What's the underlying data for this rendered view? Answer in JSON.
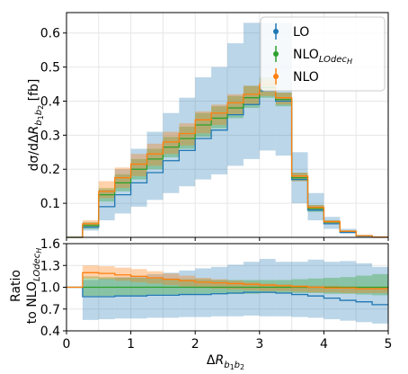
{
  "chart_data": [
    {
      "type": "histogram",
      "panel": "main",
      "ylabel": "dσ/dΔR_{b₁b₂}   [fb]",
      "xlim": [
        0,
        5
      ],
      "ylim": [
        0,
        0.66
      ],
      "yticks": [
        "0.1",
        "0.2",
        "0.3",
        "0.4",
        "0.5",
        "0.6"
      ],
      "grid": true,
      "legend_position": "top-right",
      "bin_edges": [
        0.0,
        0.25,
        0.5,
        0.75,
        1.0,
        1.25,
        1.5,
        1.75,
        2.0,
        2.25,
        2.5,
        2.75,
        3.0,
        3.25,
        3.5,
        3.75,
        4.0,
        4.25,
        4.5,
        4.75,
        5.0
      ],
      "series": [
        {
          "name": "LO",
          "color": "#1f77b4",
          "values": [
            0.0,
            0.03,
            0.09,
            0.125,
            0.16,
            0.19,
            0.225,
            0.255,
            0.29,
            0.315,
            0.36,
            0.39,
            0.43,
            0.4,
            0.17,
            0.08,
            0.04,
            0.015,
            0.004,
            0.001
          ],
          "band_low": [
            0.0,
            0.02,
            0.05,
            0.07,
            0.09,
            0.11,
            0.13,
            0.15,
            0.17,
            0.185,
            0.21,
            0.23,
            0.255,
            0.24,
            0.1,
            0.05,
            0.025,
            0.01,
            0.002,
            0.0005
          ],
          "band_high": [
            0.0,
            0.04,
            0.14,
            0.2,
            0.26,
            0.31,
            0.365,
            0.41,
            0.47,
            0.5,
            0.57,
            0.63,
            0.63,
            0.63,
            0.25,
            0.13,
            0.06,
            0.025,
            0.007,
            0.002
          ]
        },
        {
          "name": "NLO_{LOdecH}",
          "color": "#2ca02c",
          "values": [
            0.0,
            0.035,
            0.125,
            0.16,
            0.2,
            0.23,
            0.265,
            0.29,
            0.33,
            0.35,
            0.38,
            0.41,
            0.44,
            0.405,
            0.175,
            0.085,
            0.045,
            0.018,
            0.005,
            0.001
          ],
          "band_low": [
            0.0,
            0.025,
            0.105,
            0.135,
            0.17,
            0.2,
            0.235,
            0.26,
            0.295,
            0.32,
            0.35,
            0.38,
            0.41,
            0.385,
            0.165,
            0.075,
            0.04,
            0.015,
            0.004,
            0.001
          ],
          "band_high": [
            0.0,
            0.045,
            0.145,
            0.185,
            0.23,
            0.26,
            0.295,
            0.325,
            0.365,
            0.385,
            0.415,
            0.445,
            0.47,
            0.425,
            0.19,
            0.095,
            0.05,
            0.02,
            0.006,
            0.0015
          ]
        },
        {
          "name": "NLO",
          "color": "#ff7f0e",
          "values": [
            0.0,
            0.04,
            0.135,
            0.175,
            0.215,
            0.245,
            0.28,
            0.305,
            0.345,
            0.365,
            0.395,
            0.42,
            0.45,
            0.41,
            0.18,
            0.088,
            0.046,
            0.018,
            0.005,
            0.001
          ],
          "band_low": [
            0.0,
            0.03,
            0.115,
            0.145,
            0.18,
            0.21,
            0.245,
            0.27,
            0.305,
            0.33,
            0.36,
            0.39,
            0.415,
            0.39,
            0.165,
            0.08,
            0.04,
            0.016,
            0.004,
            0.001
          ],
          "band_high": [
            0.0,
            0.05,
            0.165,
            0.205,
            0.245,
            0.275,
            0.31,
            0.335,
            0.37,
            0.39,
            0.42,
            0.445,
            0.465,
            0.425,
            0.19,
            0.095,
            0.05,
            0.02,
            0.006,
            0.0015
          ]
        }
      ]
    },
    {
      "type": "histogram",
      "panel": "ratio",
      "xlabel": "ΔR_{b₁b₂}",
      "ylabel": "Ratio to NLO_{LOdecH}",
      "xlim": [
        0,
        5
      ],
      "ylim": [
        0.4,
        1.6
      ],
      "xticks": [
        "0",
        "1",
        "2",
        "3",
        "4",
        "5"
      ],
      "yticks": [
        "0.4",
        "0.7",
        "1.0",
        "1.3",
        "1.6"
      ],
      "grid": true,
      "bin_edges": [
        0.0,
        0.25,
        0.5,
        0.75,
        1.0,
        1.25,
        1.5,
        1.75,
        2.0,
        2.25,
        2.5,
        2.75,
        3.0,
        3.25,
        3.5,
        3.75,
        4.0,
        4.25,
        4.5,
        4.75,
        5.0
      ],
      "series": [
        {
          "name": "LO",
          "color": "#1f77b4",
          "values": [
            1.0,
            0.87,
            0.87,
            0.88,
            0.88,
            0.89,
            0.89,
            0.9,
            0.9,
            0.91,
            0.92,
            0.93,
            0.93,
            0.92,
            0.9,
            0.88,
            0.85,
            0.82,
            0.8,
            0.76
          ],
          "band_low": [
            1.0,
            0.55,
            0.56,
            0.57,
            0.57,
            0.58,
            0.58,
            0.59,
            0.59,
            0.6,
            0.6,
            0.61,
            0.6,
            0.6,
            0.59,
            0.58,
            0.56,
            0.54,
            0.52,
            0.5
          ],
          "band_high": [
            1.0,
            1.1,
            1.12,
            1.14,
            1.16,
            1.18,
            1.2,
            1.23,
            1.26,
            1.28,
            1.31,
            1.35,
            1.39,
            1.35,
            1.35,
            1.38,
            1.35,
            1.36,
            1.33,
            1.28
          ]
        },
        {
          "name": "NLO_{LOdecH}",
          "color": "#2ca02c",
          "values": [
            1.0,
            1.0,
            1.0,
            1.0,
            1.0,
            1.0,
            1.0,
            1.0,
            1.0,
            1.0,
            1.0,
            1.0,
            1.0,
            1.0,
            1.0,
            1.0,
            1.0,
            1.0,
            1.0,
            1.0
          ],
          "band_low": [
            1.0,
            0.88,
            0.88,
            0.89,
            0.89,
            0.9,
            0.9,
            0.9,
            0.91,
            0.91,
            0.91,
            0.91,
            0.92,
            0.92,
            0.92,
            0.92,
            0.91,
            0.91,
            0.9,
            0.89
          ],
          "band_high": [
            1.0,
            1.15,
            1.14,
            1.13,
            1.13,
            1.12,
            1.12,
            1.11,
            1.11,
            1.1,
            1.1,
            1.1,
            1.1,
            1.1,
            1.11,
            1.12,
            1.13,
            1.14,
            1.16,
            1.18
          ]
        },
        {
          "name": "NLO",
          "color": "#ff7f0e",
          "values": [
            1.0,
            1.2,
            1.19,
            1.17,
            1.15,
            1.13,
            1.11,
            1.09,
            1.07,
            1.06,
            1.05,
            1.04,
            1.03,
            1.02,
            1.01,
            1.0,
            0.99,
            0.99,
            0.98,
            0.98
          ],
          "band_low": [
            1.0,
            1.12,
            1.11,
            1.09,
            1.07,
            1.05,
            1.03,
            1.01,
            0.99,
            0.98,
            0.97,
            0.96,
            0.95,
            0.95,
            0.94,
            0.93,
            0.93,
            0.92,
            0.92,
            0.92
          ],
          "band_high": [
            1.0,
            1.3,
            1.29,
            1.27,
            1.25,
            1.22,
            1.19,
            1.16,
            1.13,
            1.11,
            1.09,
            1.07,
            1.05,
            1.04,
            1.03,
            1.02,
            1.02,
            1.01,
            1.01,
            1.01
          ]
        }
      ]
    }
  ]
}
